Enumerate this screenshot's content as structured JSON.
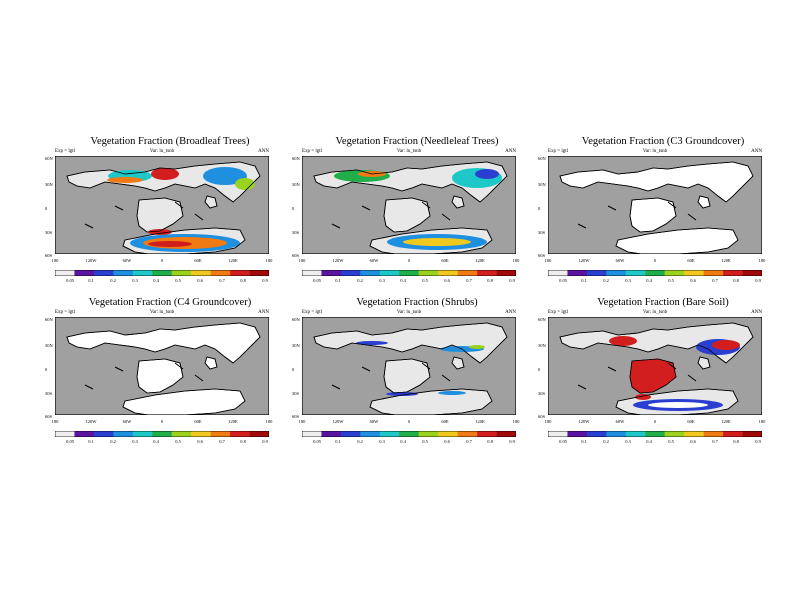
{
  "panels": [
    {
      "title": "Vegetation Fraction (Broadleaf Trees)",
      "field": "broadleaf"
    },
    {
      "title": "Vegetation Fraction (Needleleaf Trees)",
      "field": "needleleaf"
    },
    {
      "title": "Vegetation Fraction (C3 Groundcover)",
      "field": "c3"
    },
    {
      "title": "Vegetation Fraction (C4 Groundcover)",
      "field": "c4"
    },
    {
      "title": "Vegetation Fraction (Shrubs)",
      "field": "shrubs"
    },
    {
      "title": "Vegetation Fraction (Bare Soil)",
      "field": "baresoil"
    }
  ],
  "common": {
    "left_label": "Exp = lgtl",
    "center_label": "Var: lu_tsnb",
    "right_label": "ANN",
    "lat_labels": [
      "60N",
      "30N",
      "0",
      "30S",
      "60S"
    ],
    "lon_labels": [
      "180",
      "120W",
      "60W",
      "0",
      "60E",
      "120E",
      "180"
    ]
  },
  "colorbar": {
    "labels": [
      "0.05",
      "0.1",
      "0.2",
      "0.3",
      "0.4",
      "0.5",
      "0.6",
      "0.7",
      "0.8",
      "0.9"
    ],
    "colors": [
      "#eeeeee",
      "#5a14a0",
      "#2a3fd0",
      "#1f8fe0",
      "#1ec8c8",
      "#1fae4a",
      "#9ad21e",
      "#f0c81e",
      "#f07a14",
      "#d21e1e",
      "#a00a0a"
    ]
  },
  "map_colors": {
    "ocean": "#a0a0a0",
    "land": "#ffffff",
    "low_fraction": "#e8e8e8",
    "coast": "#000000"
  },
  "chart_data": {
    "type": "heatmap",
    "panels": [
      {
        "title": "Vegetation Fraction (Broadleaf Trees)",
        "dominant_values": {
          "north_band": "0.3-0.8",
          "southern_continent_band": "0.4-0.9",
          "equatorial_continent": "<0.1"
        }
      },
      {
        "title": "Vegetation Fraction (Needleleaf Trees)",
        "dominant_values": {
          "north_band": "0.4-0.8",
          "southern_continent_band": "0.3-0.7",
          "equatorial_continent": "<0.05"
        }
      },
      {
        "title": "Vegetation Fraction (C3 Groundcover)",
        "dominant_values": {
          "all_land": "<0.05"
        }
      },
      {
        "title": "Vegetation Fraction (C4 Groundcover)",
        "dominant_values": {
          "all_land": "<0.05"
        }
      },
      {
        "title": "Vegetation Fraction (Shrubs)",
        "dominant_values": {
          "north_band": "0.1-0.3",
          "southern_edges": "0.2-0.3",
          "interior": "0.05"
        }
      },
      {
        "title": "Vegetation Fraction (Bare Soil)",
        "dominant_values": {
          "equatorial_continent": "0.9",
          "north_band": "0.5-0.9",
          "southern_continent": "0.1-0.3"
        }
      }
    ],
    "xlim": [
      "180",
      "180"
    ],
    "ylim": [
      "90S",
      "90N"
    ],
    "colorbar_levels": [
      0.05,
      0.1,
      0.2,
      0.3,
      0.4,
      0.5,
      0.6,
      0.7,
      0.8,
      0.9
    ]
  }
}
